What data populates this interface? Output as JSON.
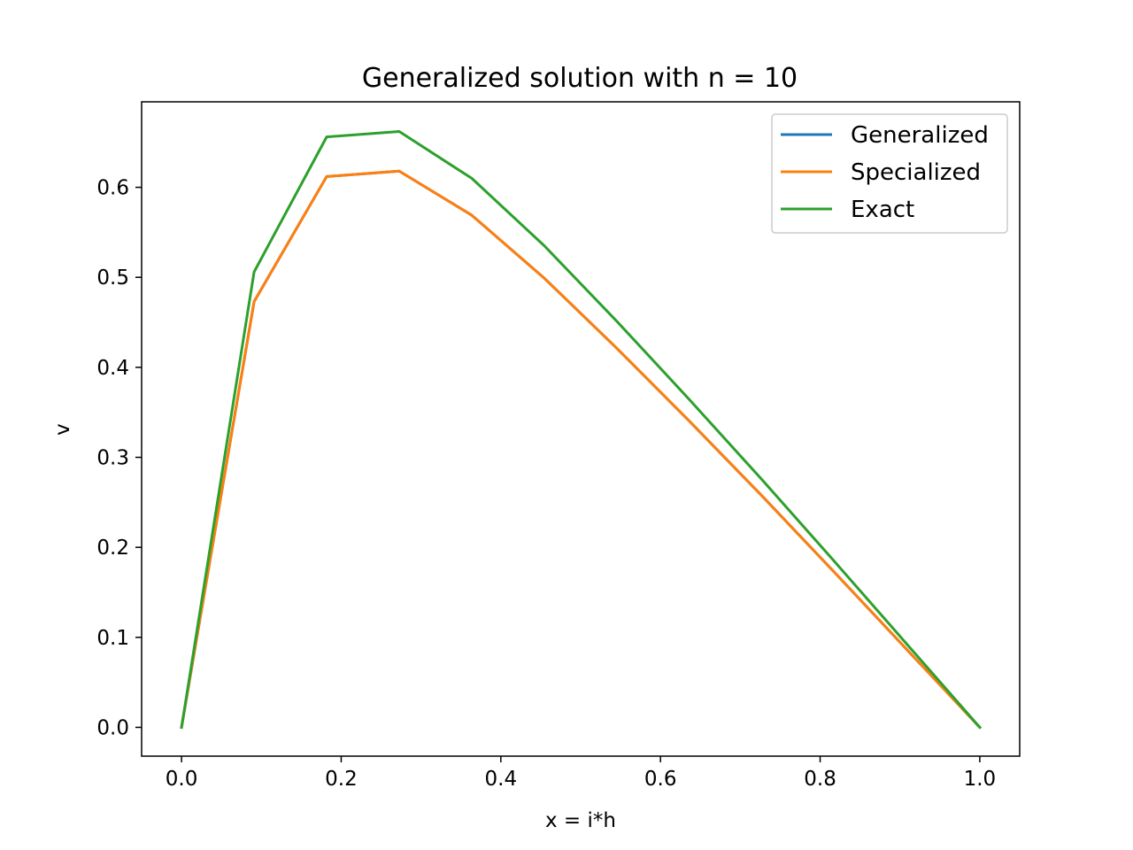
{
  "chart_data": {
    "type": "line",
    "title": "Generalized solution with n = 10",
    "xlabel": "x = i*h",
    "ylabel": "v",
    "xlim": [
      -0.05,
      1.05
    ],
    "ylim": [
      -0.032,
      0.695
    ],
    "xticks": [
      0.0,
      0.2,
      0.4,
      0.6,
      0.8,
      1.0
    ],
    "xtick_labels": [
      "0.0",
      "0.2",
      "0.4",
      "0.6",
      "0.8",
      "1.0"
    ],
    "yticks": [
      0.0,
      0.1,
      0.2,
      0.3,
      0.4,
      0.5,
      0.6
    ],
    "ytick_labels": [
      "0.0",
      "0.1",
      "0.2",
      "0.3",
      "0.4",
      "0.5",
      "0.6"
    ],
    "grid": false,
    "legend_position": "top-right",
    "x": [
      0.0,
      0.0909,
      0.1818,
      0.2727,
      0.3636,
      0.4545,
      0.5455,
      0.6364,
      0.7273,
      0.8182,
      0.9091,
      1.0
    ],
    "series": [
      {
        "name": "Generalized",
        "color": "#1f77b4",
        "values": [
          0.0,
          0.473,
          0.612,
          0.618,
          0.569,
          0.499,
          0.421,
          0.34,
          0.257,
          0.172,
          0.086,
          0.0
        ]
      },
      {
        "name": "Specialized",
        "color": "#ff7f0e",
        "values": [
          0.0,
          0.473,
          0.612,
          0.618,
          0.569,
          0.499,
          0.421,
          0.34,
          0.257,
          0.172,
          0.086,
          0.0
        ]
      },
      {
        "name": "Exact",
        "color": "#2ca02c",
        "values": [
          0.0,
          0.506,
          0.656,
          0.662,
          0.61,
          0.535,
          0.451,
          0.364,
          0.275,
          0.184,
          0.092,
          0.0
        ]
      }
    ]
  }
}
